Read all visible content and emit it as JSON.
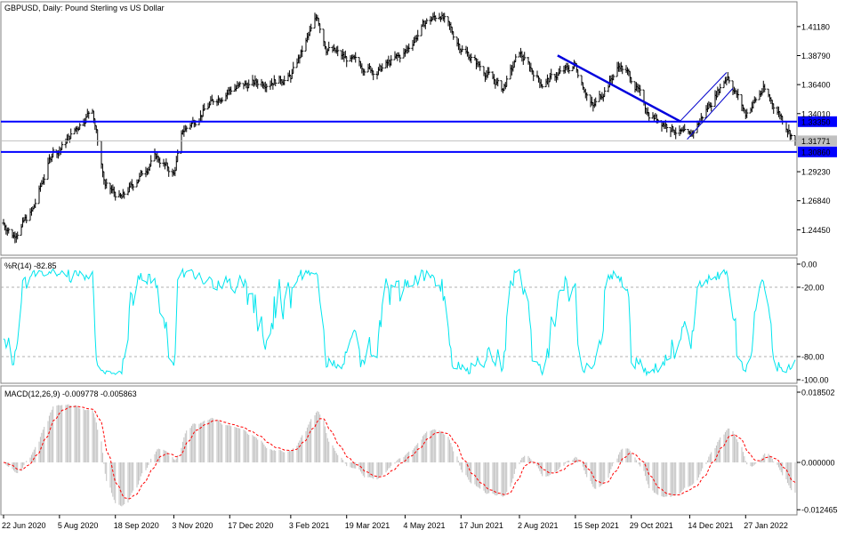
{
  "chart_data": [
    {
      "type": "candlestick",
      "title": "GBPUSD, Daily:  Pound Sterling vs US Dollar",
      "symbol": "GBPUSD",
      "timeframe": "Daily",
      "description": "Pound Sterling vs US Dollar",
      "ylim": [
        1.225,
        1.43
      ],
      "yticks": [
        "1.41180",
        "1.38790",
        "1.36400",
        "1.34010",
        "1.29230",
        "1.26840",
        "1.24450"
      ],
      "x_labels": [
        "22 Jun 2020",
        "5 Aug 2020",
        "18 Sep 2020",
        "3 Nov 2020",
        "17 Dec 2020",
        "3 Feb 2021",
        "19 Mar 2021",
        "4 May 2021",
        "17 Jun 2021",
        "2 Aug 2021",
        "15 Sep 2021",
        "29 Oct 2021",
        "14 Dec 2021",
        "27 Jan 2022"
      ],
      "price_path": [
        [
          "22 Jun 2020",
          1.25
        ],
        [
          "30 Jun 2020",
          1.24
        ],
        [
          "15 Jul 2020",
          1.26
        ],
        [
          "31 Jul 2020",
          1.31
        ],
        [
          "5 Aug 2020",
          1.31
        ],
        [
          "31 Aug 2020",
          1.345
        ],
        [
          "10 Sep 2020",
          1.28
        ],
        [
          "23 Sep 2020",
          1.27
        ],
        [
          "20 Oct 2020",
          1.305
        ],
        [
          "3 Nov 2020",
          1.29
        ],
        [
          "10 Nov 2020",
          1.325
        ],
        [
          "4 Dec 2020",
          1.35
        ],
        [
          "17 Dec 2020",
          1.36
        ],
        [
          "4 Jan 2021",
          1.365
        ],
        [
          "3 Feb 2021",
          1.37
        ],
        [
          "24 Feb 2021",
          1.42
        ],
        [
          "3 Mar 2021",
          1.395
        ],
        [
          "19 Mar 2021",
          1.385
        ],
        [
          "12 Apr 2021",
          1.375
        ],
        [
          "4 May 2021",
          1.39
        ],
        [
          "20 May 2021",
          1.415
        ],
        [
          "1 Jun 2021",
          1.422
        ],
        [
          "17 Jun 2021",
          1.395
        ],
        [
          "20 Jul 2021",
          1.36
        ],
        [
          "2 Aug 2021",
          1.39
        ],
        [
          "20 Aug 2021",
          1.365
        ],
        [
          "15 Sep 2021",
          1.38
        ],
        [
          "29 Sep 2021",
          1.345
        ],
        [
          "20 Oct 2021",
          1.38
        ],
        [
          "29 Oct 2021",
          1.37
        ],
        [
          "12 Nov 2021",
          1.34
        ],
        [
          "14 Dec 2021",
          1.32
        ],
        [
          "31 Dec 2021",
          1.35
        ],
        [
          "13 Jan 2022",
          1.372
        ],
        [
          "27 Jan 2022",
          1.34
        ],
        [
          "10 Feb 2022",
          1.36
        ],
        [
          "23 Feb 2022",
          1.34
        ],
        [
          "7 Mar 2022",
          1.3177
        ]
      ],
      "horizontal_lines": [
        {
          "label": "1.33350",
          "value": 1.3335,
          "color": "#0000ff"
        },
        {
          "label": "1.30860",
          "value": 1.3086,
          "color": "#0000ff"
        },
        {
          "label": "1.31771",
          "value": 1.31771,
          "color": "#c0c0c0"
        }
      ],
      "trendline": {
        "from": [
          "1 Sep 2021",
          1.388
        ],
        "to": [
          "7 Dec 2021",
          1.3335
        ],
        "color": "#0000dd"
      },
      "channel": {
        "upper": {
          "from": [
            "7 Dec 2021",
            1.3345
          ],
          "to": [
            "12 Jan 2022",
            1.374
          ]
        },
        "lower": {
          "from": [
            "12 Dec 2021",
            1.319
          ],
          "to": [
            "17 Jan 2022",
            1.361
          ]
        },
        "color": "#0000cc"
      }
    },
    {
      "type": "line",
      "title": "%R(14) -82.85",
      "name": "%R",
      "period": 14,
      "current_value": -82.85,
      "ylim": [
        -100,
        0
      ],
      "yticks": [
        "0.00",
        "-20.00",
        "-80.00",
        "-100.00"
      ],
      "levels": [
        -20,
        -80
      ],
      "color": "#00e5ee"
    },
    {
      "type": "bar",
      "title": "MACD(12,26,9) -0.009778 -0.005863",
      "name": "MACD",
      "params": [
        12,
        26,
        9
      ],
      "macd_value": -0.009778,
      "signal_value": -0.005863,
      "ylim": [
        -0.01265,
        0.0185
      ],
      "yticks": [
        "0.018502",
        "0.000000",
        "-0.012465"
      ],
      "histogram_color": "#c0c0c0",
      "signal_color": "#ff0000"
    }
  ]
}
